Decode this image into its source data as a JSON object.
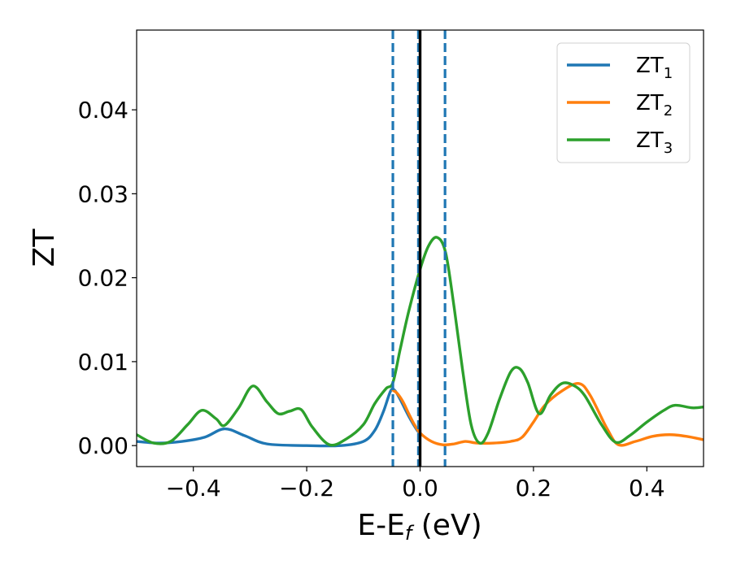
{
  "chart_data": {
    "type": "line",
    "title": "",
    "xlabel": "E-E",
    "xlabel_sub": "f",
    "xlabel_unit": " (eV)",
    "ylabel": "ZT",
    "xlim": [
      -0.5,
      0.5
    ],
    "ylim": [
      -0.0025,
      0.0495
    ],
    "x_ticks": [
      -0.4,
      -0.2,
      0.0,
      0.2,
      0.4
    ],
    "x_tick_labels": [
      "−0.4",
      "−0.2",
      "0.0",
      "0.2",
      "0.4"
    ],
    "y_ticks": [
      0.0,
      0.01,
      0.02,
      0.03,
      0.04
    ],
    "y_tick_labels": [
      "0.00",
      "0.01",
      "0.02",
      "0.03",
      "0.04"
    ],
    "grid": false,
    "legend_position": "top-right",
    "vlines": [
      {
        "x": -0.048,
        "style": "dashed",
        "color": "#1f77b4"
      },
      {
        "x": -0.003,
        "style": "dashed",
        "color": "#1f77b4"
      },
      {
        "x": 0.0,
        "style": "solid",
        "color": "#000000"
      },
      {
        "x": 0.044,
        "style": "dashed",
        "color": "#1f77b4"
      }
    ],
    "series": [
      {
        "name": "ZT",
        "sub": "1",
        "color": "#1f77b4",
        "x": [
          -0.5,
          -0.46,
          -0.42,
          -0.38,
          -0.345,
          -0.31,
          -0.27,
          -0.2,
          -0.14,
          -0.1,
          -0.08,
          -0.065,
          -0.052,
          -0.045,
          -0.035,
          -0.02,
          -0.005,
          0.0
        ],
        "y": [
          0.0005,
          0.0003,
          0.0005,
          0.001,
          0.002,
          0.0012,
          0.0002,
          0.0,
          0.0,
          0.0005,
          0.0018,
          0.004,
          0.0065,
          0.0066,
          0.0055,
          0.0035,
          0.0018,
          0.0015
        ]
      },
      {
        "name": "ZT",
        "sub": "2",
        "color": "#ff7f0e",
        "x": [
          -0.048,
          -0.04,
          -0.03,
          -0.02,
          -0.01,
          0.0,
          0.02,
          0.04,
          0.06,
          0.08,
          0.1,
          0.13,
          0.16,
          0.18,
          0.2,
          0.22,
          0.25,
          0.28,
          0.3,
          0.33,
          0.35,
          0.38,
          0.41,
          0.44,
          0.47,
          0.5
        ],
        "y": [
          0.0066,
          0.0062,
          0.0052,
          0.0038,
          0.0025,
          0.0015,
          0.0005,
          0.0001,
          0.0002,
          0.0005,
          0.0003,
          0.0003,
          0.0005,
          0.001,
          0.0028,
          0.0048,
          0.0065,
          0.0074,
          0.006,
          0.002,
          0.0001,
          0.0005,
          0.0011,
          0.0013,
          0.0011,
          0.0007
        ]
      },
      {
        "name": "ZT",
        "sub": "3",
        "color": "#2ca02c",
        "x": [
          -0.5,
          -0.47,
          -0.44,
          -0.41,
          -0.385,
          -0.36,
          -0.345,
          -0.32,
          -0.295,
          -0.27,
          -0.25,
          -0.23,
          -0.21,
          -0.19,
          -0.16,
          -0.13,
          -0.1,
          -0.08,
          -0.06,
          -0.048,
          -0.035,
          -0.02,
          0.0,
          0.015,
          0.03,
          0.045,
          0.06,
          0.075,
          0.09,
          0.105,
          0.12,
          0.14,
          0.16,
          0.175,
          0.19,
          0.21,
          0.23,
          0.25,
          0.27,
          0.29,
          0.32,
          0.345,
          0.37,
          0.4,
          0.43,
          0.45,
          0.48,
          0.5
        ],
        "y": [
          0.0013,
          0.0003,
          0.0005,
          0.0025,
          0.0042,
          0.0032,
          0.0024,
          0.0045,
          0.0071,
          0.0052,
          0.0038,
          0.0041,
          0.0043,
          0.0022,
          0.0001,
          0.0008,
          0.0025,
          0.005,
          0.0068,
          0.0075,
          0.0115,
          0.016,
          0.021,
          0.0238,
          0.0248,
          0.023,
          0.0165,
          0.009,
          0.0025,
          0.0003,
          0.0015,
          0.0055,
          0.0088,
          0.0092,
          0.0075,
          0.0038,
          0.006,
          0.0074,
          0.0072,
          0.006,
          0.0025,
          0.0004,
          0.0012,
          0.0028,
          0.0042,
          0.0048,
          0.0045,
          0.0046
        ]
      }
    ]
  }
}
